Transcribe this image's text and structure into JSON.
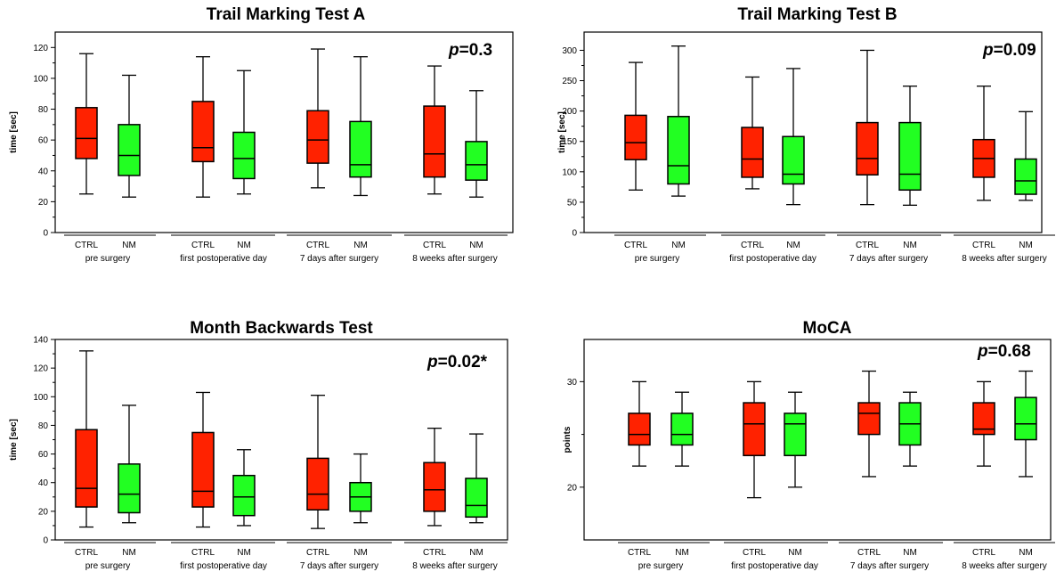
{
  "chart_data": [
    {
      "type": "box",
      "title": "Trail Marking Test A",
      "ylabel": "time [sec]",
      "ylim": [
        0,
        130
      ],
      "yticks": [
        0,
        20,
        40,
        60,
        80,
        100,
        120
      ],
      "annotation_prefix": "p",
      "annotation_value": "=0.3",
      "categories": [
        "CTRL",
        "NM"
      ],
      "groups": [
        "pre surgery",
        "first postoperative day",
        "7 days after surgery",
        "8 weeks after surgery"
      ],
      "colors": {
        "CTRL": "#ff2200",
        "NM": "#22ff22"
      },
      "boxes": [
        {
          "group": "pre surgery",
          "category": "CTRL",
          "min": 25,
          "q1": 48,
          "median": 61,
          "q3": 81,
          "max": 116
        },
        {
          "group": "pre surgery",
          "category": "NM",
          "min": 23,
          "q1": 37,
          "median": 50,
          "q3": 70,
          "max": 102
        },
        {
          "group": "first postoperative day",
          "category": "CTRL",
          "min": 23,
          "q1": 46,
          "median": 55,
          "q3": 85,
          "max": 114
        },
        {
          "group": "first postoperative day",
          "category": "NM",
          "min": 25,
          "q1": 35,
          "median": 48,
          "q3": 65,
          "max": 105
        },
        {
          "group": "7 days after surgery",
          "category": "CTRL",
          "min": 29,
          "q1": 45,
          "median": 60,
          "q3": 79,
          "max": 119
        },
        {
          "group": "7 days after surgery",
          "category": "NM",
          "min": 24,
          "q1": 36,
          "median": 44,
          "q3": 72,
          "max": 114
        },
        {
          "group": "8 weeks after surgery",
          "category": "CTRL",
          "min": 25,
          "q1": 36,
          "median": 51,
          "q3": 82,
          "max": 108
        },
        {
          "group": "8 weeks after surgery",
          "category": "NM",
          "min": 23,
          "q1": 34,
          "median": 44,
          "q3": 59,
          "max": 92
        }
      ]
    },
    {
      "type": "box",
      "title": "Trail Marking Test B",
      "ylabel": "time [sec]",
      "ylim": [
        0,
        330
      ],
      "yticks": [
        0,
        50,
        100,
        150,
        200,
        250,
        300
      ],
      "annotation_prefix": "p",
      "annotation_value": "=0.09",
      "categories": [
        "CTRL",
        "NM"
      ],
      "groups": [
        "pre surgery",
        "first postoperative day",
        "7 days after surgery",
        "8 weeks after surgery"
      ],
      "colors": {
        "CTRL": "#ff2200",
        "NM": "#22ff22"
      },
      "boxes": [
        {
          "group": "pre surgery",
          "category": "CTRL",
          "min": 70,
          "q1": 120,
          "median": 148,
          "q3": 193,
          "max": 280
        },
        {
          "group": "pre surgery",
          "category": "NM",
          "min": 60,
          "q1": 80,
          "median": 110,
          "q3": 191,
          "max": 307
        },
        {
          "group": "first postoperative day",
          "category": "CTRL",
          "min": 72,
          "q1": 91,
          "median": 121,
          "q3": 173,
          "max": 256
        },
        {
          "group": "first postoperative day",
          "category": "NM",
          "min": 46,
          "q1": 80,
          "median": 96,
          "q3": 158,
          "max": 270
        },
        {
          "group": "7 days after surgery",
          "category": "CTRL",
          "min": 46,
          "q1": 95,
          "median": 122,
          "q3": 181,
          "max": 300
        },
        {
          "group": "7 days after surgery",
          "category": "NM",
          "min": 45,
          "q1": 70,
          "median": 96,
          "q3": 181,
          "max": 241
        },
        {
          "group": "8 weeks after surgery",
          "category": "CTRL",
          "min": 53,
          "q1": 91,
          "median": 122,
          "q3": 153,
          "max": 241
        },
        {
          "group": "8 weeks after surgery",
          "category": "NM",
          "min": 53,
          "q1": 63,
          "median": 85,
          "q3": 121,
          "max": 199
        }
      ]
    },
    {
      "type": "box",
      "title": "Month Backwards Test",
      "ylabel": "time [sec]",
      "ylim": [
        0,
        140
      ],
      "yticks": [
        0,
        20,
        40,
        60,
        80,
        100,
        120,
        140
      ],
      "annotation_prefix": "p",
      "annotation_value": "=0.02*",
      "categories": [
        "CTRL",
        "NM"
      ],
      "groups": [
        "pre surgery",
        "first postoperative day",
        "7 days after surgery",
        "8 weeks after surgery"
      ],
      "colors": {
        "CTRL": "#ff2200",
        "NM": "#22ff22"
      },
      "boxes": [
        {
          "group": "pre surgery",
          "category": "CTRL",
          "min": 9,
          "q1": 23,
          "median": 36,
          "q3": 77,
          "max": 132
        },
        {
          "group": "pre surgery",
          "category": "NM",
          "min": 12,
          "q1": 19,
          "median": 32,
          "q3": 53,
          "max": 94
        },
        {
          "group": "first postoperative day",
          "category": "CTRL",
          "min": 9,
          "q1": 23,
          "median": 34,
          "q3": 75,
          "max": 103
        },
        {
          "group": "first postoperative day",
          "category": "NM",
          "min": 10,
          "q1": 17,
          "median": 30,
          "q3": 45,
          "max": 63
        },
        {
          "group": "7 days after surgery",
          "category": "CTRL",
          "min": 8,
          "q1": 21,
          "median": 32,
          "q3": 57,
          "max": 101
        },
        {
          "group": "7 days after surgery",
          "category": "NM",
          "min": 12,
          "q1": 20,
          "median": 30,
          "q3": 40,
          "max": 60
        },
        {
          "group": "8 weeks after surgery",
          "category": "CTRL",
          "min": 10,
          "q1": 20,
          "median": 35,
          "q3": 54,
          "max": 78
        },
        {
          "group": "8 weeks after surgery",
          "category": "NM",
          "min": 12,
          "q1": 16,
          "median": 24,
          "q3": 43,
          "max": 74
        }
      ]
    },
    {
      "type": "box",
      "title": "MoCA",
      "ylabel": "points",
      "ylim": [
        15,
        34
      ],
      "yticks": [
        20,
        30
      ],
      "annotation_prefix": "p",
      "annotation_value": "=0.68",
      "categories": [
        "CTRL",
        "NM"
      ],
      "groups": [
        "pre surgery",
        "first postoperative day",
        "7 days after surgery",
        "8 weeks after surgery"
      ],
      "colors": {
        "CTRL": "#ff2200",
        "NM": "#22ff22"
      },
      "boxes": [
        {
          "group": "pre surgery",
          "category": "CTRL",
          "min": 22,
          "q1": 24,
          "median": 25,
          "q3": 27,
          "max": 30
        },
        {
          "group": "pre surgery",
          "category": "NM",
          "min": 22,
          "q1": 24,
          "median": 25,
          "q3": 27,
          "max": 29
        },
        {
          "group": "first postoperative day",
          "category": "CTRL",
          "min": 19,
          "q1": 23,
          "median": 26,
          "q3": 28,
          "max": 30
        },
        {
          "group": "first postoperative day",
          "category": "NM",
          "min": 20,
          "q1": 23,
          "median": 26,
          "q3": 27,
          "max": 29
        },
        {
          "group": "7 days after surgery",
          "category": "CTRL",
          "min": 21,
          "q1": 25,
          "median": 27,
          "q3": 28,
          "max": 31
        },
        {
          "group": "7 days after surgery",
          "category": "NM",
          "min": 22,
          "q1": 24,
          "median": 26,
          "q3": 28,
          "max": 29
        },
        {
          "group": "8 weeks after surgery",
          "category": "CTRL",
          "min": 22,
          "q1": 25,
          "median": 25.5,
          "q3": 28,
          "max": 30
        },
        {
          "group": "8 weeks after surgery",
          "category": "NM",
          "min": 21,
          "q1": 24.5,
          "median": 26,
          "q3": 28.5,
          "max": 31
        }
      ]
    }
  ]
}
